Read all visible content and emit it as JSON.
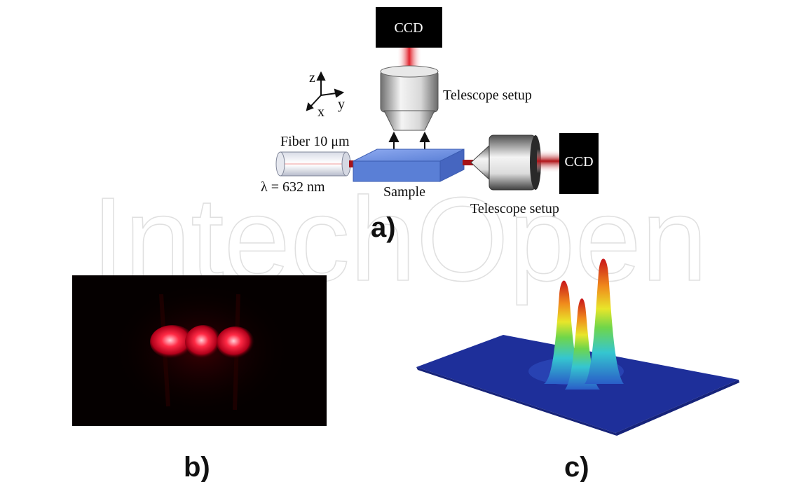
{
  "watermark": "IntechOpen",
  "setup": {
    "ccd_top_label": "CCD",
    "ccd_right_label": "CCD",
    "telescope_top_label": "Telescope setup",
    "telescope_right_label": "Telescope setup",
    "fiber_label": "Fiber 10 μm",
    "wavelength_label": "λ = 632 nm",
    "sample_label": "Sample",
    "axes": {
      "z": "z",
      "x": "x",
      "y": "y"
    }
  },
  "panels": {
    "a": "a)",
    "b": "b)",
    "c": "c)"
  },
  "colors": {
    "beam_red": "#e0202a",
    "sample_blue": "#5a7fd6",
    "surface_blue": "#1e2f9a",
    "ccd_black": "#000000"
  }
}
